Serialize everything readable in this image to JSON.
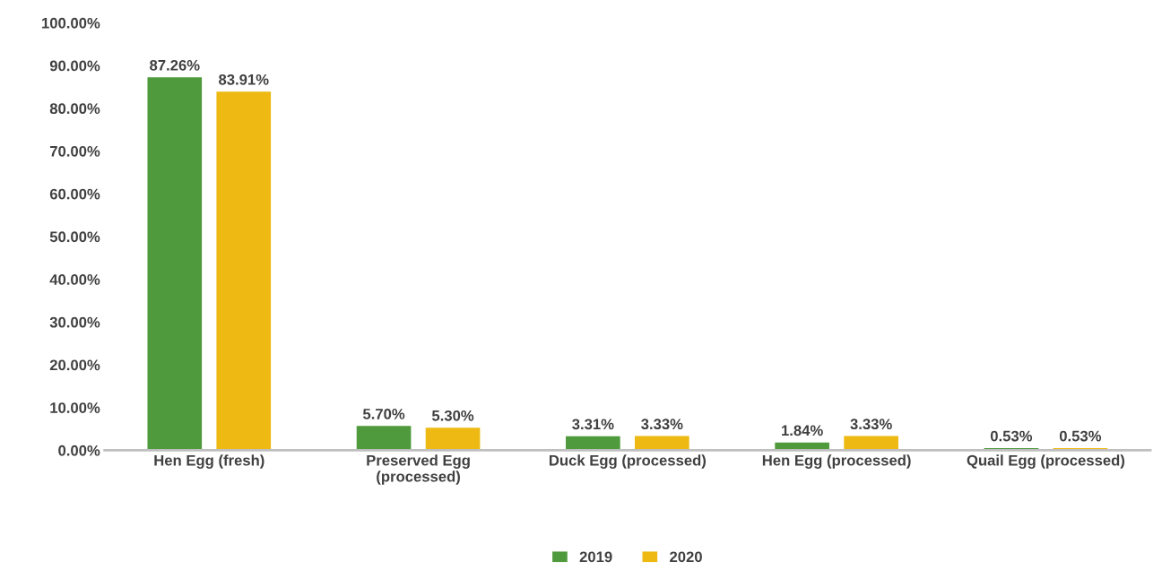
{
  "chart_data": {
    "type": "bar",
    "categories": [
      "Hen Egg (fresh)",
      "Preserved Egg\n(processed)",
      "Duck Egg (processed)",
      "Hen Egg (processed)",
      "Quail Egg (processed)"
    ],
    "series": [
      {
        "name": "2019",
        "color": "#4f9a3c",
        "values": [
          87.26,
          5.7,
          3.31,
          1.84,
          0.53
        ],
        "value_labels": [
          "87.26%",
          "5.70%",
          "3.31%",
          "1.84%",
          "0.53%"
        ]
      },
      {
        "name": "2020",
        "color": "#edb912",
        "values": [
          83.91,
          5.3,
          3.33,
          3.33,
          0.53
        ],
        "value_labels": [
          "83.91%",
          "5.30%",
          "3.33%",
          "3.33%",
          "0.53%"
        ]
      }
    ],
    "ylim": [
      0,
      100
    ],
    "yticks": [
      {
        "value": 0,
        "label": "0.00%"
      },
      {
        "value": 10,
        "label": "10.00%"
      },
      {
        "value": 20,
        "label": "20.00%"
      },
      {
        "value": 30,
        "label": "30.00%"
      },
      {
        "value": 40,
        "label": "40.00%"
      },
      {
        "value": 50,
        "label": "50.00%"
      },
      {
        "value": 60,
        "label": "60.00%"
      },
      {
        "value": 70,
        "label": "70.00%"
      },
      {
        "value": 80,
        "label": "80.00%"
      },
      {
        "value": 90,
        "label": "90.00%"
      },
      {
        "value": 100,
        "label": "100.00%"
      }
    ],
    "grid": false,
    "legend": "bottom"
  }
}
